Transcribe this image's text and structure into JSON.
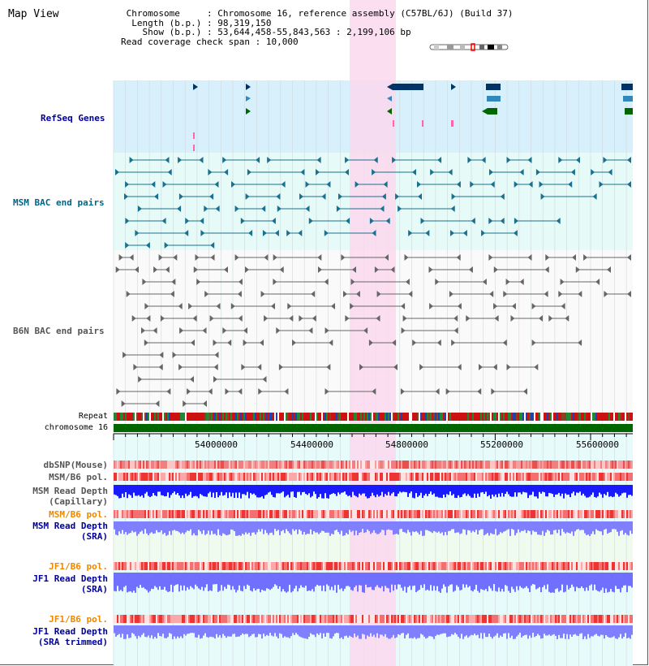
{
  "page": {
    "title": "Map View"
  },
  "info": {
    "chromosome_label": "Chromosome",
    "chromosome_value": "Chromosome 16, reference assembly (C57BL/6J) (Build 37)",
    "length_label": "Length (b.p.)",
    "length_value": "98,319,150",
    "show_label": "Show (b.p.)",
    "show_value": "53,644,458-55,843,563 : 2,199,106 bp",
    "coverage_label": "Read coverage check span",
    "coverage_value": "10,000"
  },
  "tracks": {
    "refseq": "RefSeq Genes",
    "msm_bac": "MSM BAC end pairs",
    "b6n_bac": "B6N BAC end pairs",
    "repeat": "Repeat",
    "chromosome": "chromosome 16",
    "dbsnp": "dbSNP(Mouse)",
    "msm_b6_pol_1": "MSM/B6 pol.",
    "msm_depth_cap_1": "MSM Read Depth",
    "msm_depth_cap_2": "(Capillary)",
    "msm_b6_pol_2": "MSM/B6 pol.",
    "msm_depth_sra_1": "MSM Read Depth",
    "msm_depth_sra_2": "(SRA)",
    "jf1_b6_pol_1": "JF1/B6 pol.",
    "jf1_depth_sra_1": "JF1 Read Depth",
    "jf1_depth_sra_2": "(SRA)",
    "jf1_b6_pol_2": "JF1/B6 pol.",
    "jf1_depth_trim_1": "JF1 Read Depth",
    "jf1_depth_trim_2": "(SRA trimmed)"
  },
  "axis": {
    "ticks": [
      "54000000",
      "54400000",
      "54800000",
      "55200000",
      "55600000"
    ]
  },
  "colors": {
    "refseq_bg": "#d8f0fb",
    "msm_bg": "#e6faf8",
    "data_bg": "#e8fbfb",
    "highlight": "#fbd8ee",
    "chromosome": "#006600",
    "depth_blue": "#1a1aff",
    "depth_light": "#8080ff"
  }
}
